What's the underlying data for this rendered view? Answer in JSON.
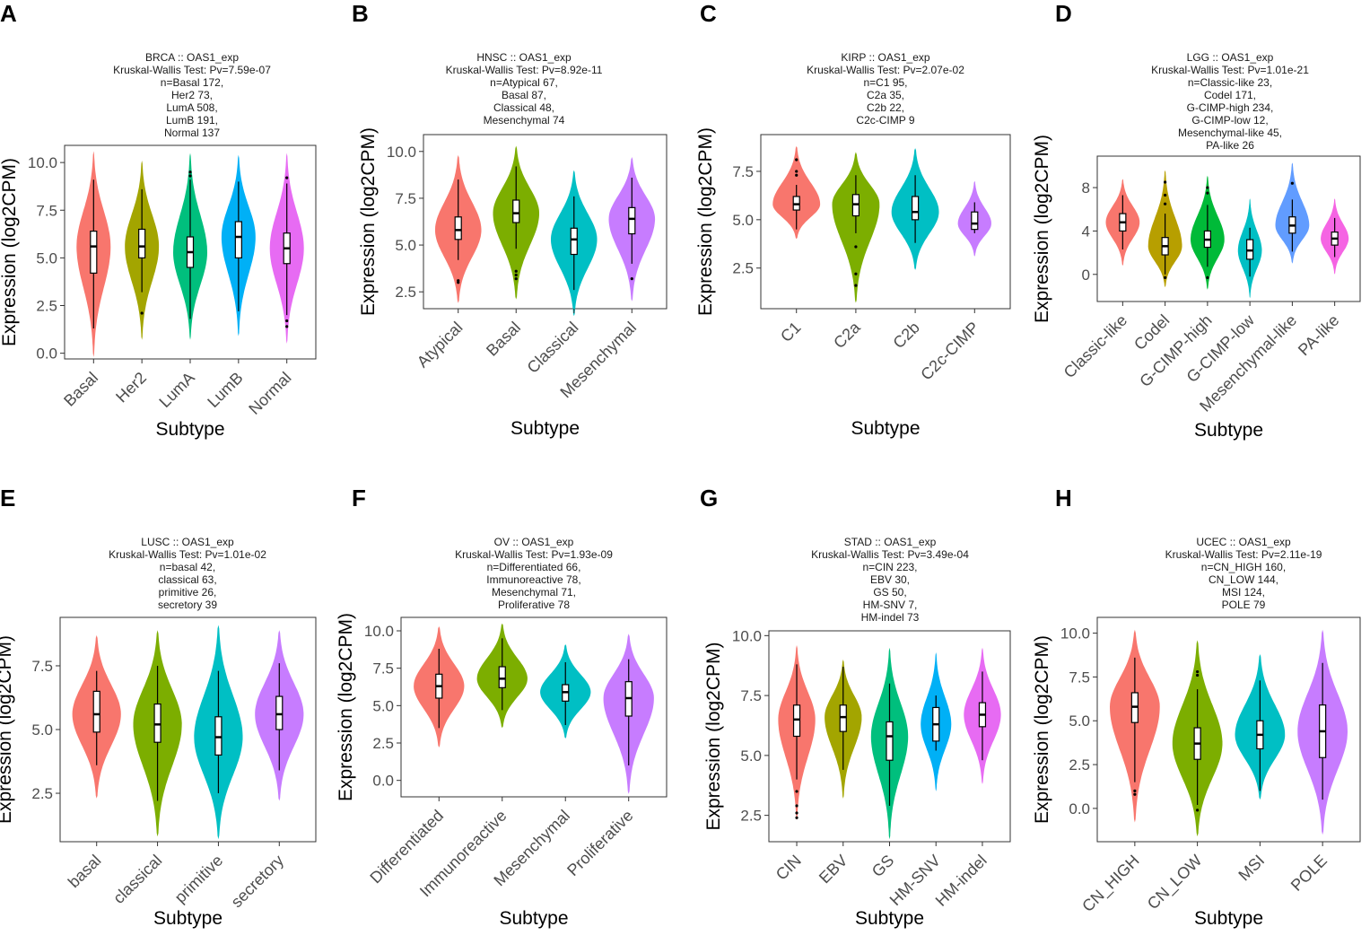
{
  "figure": {
    "xlabel": "Subtype",
    "ylabel": "Expression (log2CPM)"
  },
  "chart_data": [
    {
      "panel": "A",
      "type": "violin",
      "title_lines": [
        "BRCA :: OAS1_exp",
        "Kruskal-Wallis Test: Pv=7.59e-07",
        "n=Basal 172,",
        "Her2 73,",
        "LumA 508,",
        "LumB 191,",
        "Normal 137"
      ],
      "xlabel": "Subtype",
      "ylabel": "Expression (log2CPM)",
      "ylim": [
        -0.3,
        10.9
      ],
      "yticks": [
        0.0,
        2.5,
        5.0,
        7.5,
        10.0
      ],
      "tick_decimals": 1,
      "categories": [
        "Basal",
        "Her2",
        "LumA",
        "LumB",
        "Normal"
      ],
      "colors": [
        "#F8766D",
        "#A3A500",
        "#00BF7D",
        "#00B0F6",
        "#E76BF3"
      ],
      "violins": [
        {
          "min": -0.2,
          "max": 10.6,
          "width": 0.75,
          "q1": 4.2,
          "med": 5.6,
          "q3": 6.4,
          "wlo": 1.3,
          "whi": 9.1,
          "outliers": []
        },
        {
          "min": 0.7,
          "max": 10.1,
          "width": 0.75,
          "q1": 5.0,
          "med": 5.6,
          "q3": 6.5,
          "wlo": 3.2,
          "whi": 8.6,
          "outliers": [
            2.1
          ]
        },
        {
          "min": 0.7,
          "max": 10.5,
          "width": 0.75,
          "q1": 4.5,
          "med": 5.3,
          "q3": 6.1,
          "wlo": 1.8,
          "whi": 9.1,
          "outliers": [
            9.3,
            9.5
          ]
        },
        {
          "min": 0.9,
          "max": 10.4,
          "width": 0.75,
          "q1": 5.0,
          "med": 6.1,
          "q3": 6.9,
          "wlo": 2.2,
          "whi": 9.0,
          "outliers": []
        },
        {
          "min": 0.5,
          "max": 10.5,
          "width": 0.75,
          "q1": 4.7,
          "med": 5.5,
          "q3": 6.3,
          "wlo": 2.0,
          "whi": 8.9,
          "outliers": [
            9.2,
            1.7,
            1.4
          ]
        }
      ]
    },
    {
      "panel": "B",
      "type": "violin",
      "title_lines": [
        "HNSC :: OAS1_exp",
        "Kruskal-Wallis Test: Pv=8.92e-11",
        "n=Atypical 67,",
        "Basal 87,",
        "Classical 48,",
        "Mesenchymal 74"
      ],
      "xlabel": "Subtype",
      "ylabel": "Expression (log2CPM)",
      "ylim": [
        1.6,
        10.9
      ],
      "yticks": [
        2.5,
        5.0,
        7.5,
        10.0
      ],
      "tick_decimals": 1,
      "categories": [
        "Atypical",
        "Basal",
        "Classical",
        "Mesenchymal"
      ],
      "colors": [
        "#F8766D",
        "#7CAE00",
        "#00BFC4",
        "#C77CFF"
      ],
      "violins": [
        {
          "min": 1.9,
          "max": 9.8,
          "width": 0.85,
          "q1": 5.3,
          "med": 5.8,
          "q3": 6.5,
          "wlo": 4.2,
          "whi": 8.5,
          "outliers": [
            3.1,
            3.0
          ]
        },
        {
          "min": 2.1,
          "max": 10.3,
          "width": 0.85,
          "q1": 6.2,
          "med": 6.7,
          "q3": 7.4,
          "wlo": 4.8,
          "whi": 9.2,
          "outliers": [
            3.6,
            3.4,
            3.2
          ]
        },
        {
          "min": 1.2,
          "max": 9.0,
          "width": 0.85,
          "q1": 4.5,
          "med": 5.3,
          "q3": 5.9,
          "wlo": 2.6,
          "whi": 7.6,
          "outliers": []
        },
        {
          "min": 2.0,
          "max": 9.7,
          "width": 0.85,
          "q1": 5.6,
          "med": 6.4,
          "q3": 7.0,
          "wlo": 4.0,
          "whi": 8.6,
          "outliers": [
            3.2
          ]
        }
      ]
    },
    {
      "panel": "C",
      "type": "violin",
      "title_lines": [
        "KIRP :: OAS1_exp",
        "Kruskal-Wallis Test: Pv=2.07e-02",
        "n=C1 95,",
        "C2a 35,",
        "C2b 22,",
        "C2c-CIMP 9"
      ],
      "xlabel": "Subtype",
      "ylabel": "Expression (log2CPM)",
      "ylim": [
        0.4,
        9.4
      ],
      "yticks": [
        2.5,
        5.0,
        7.5
      ],
      "tick_decimals": 1,
      "categories": [
        "C1",
        "C2a",
        "C2b",
        "C2c-CIMP"
      ],
      "colors": [
        "#F8766D",
        "#7CAE00",
        "#00BFC4",
        "#C77CFF"
      ],
      "violins": [
        {
          "min": 4.0,
          "max": 8.8,
          "width": 0.85,
          "q1": 5.5,
          "med": 5.8,
          "q3": 6.2,
          "wlo": 4.5,
          "whi": 6.8,
          "outliers": [
            8.1,
            7.5,
            7.3
          ]
        },
        {
          "min": 0.7,
          "max": 8.5,
          "width": 0.85,
          "q1": 5.2,
          "med": 5.8,
          "q3": 6.3,
          "wlo": 4.3,
          "whi": 7.3,
          "outliers": [
            3.6,
            2.2,
            1.6
          ]
        },
        {
          "min": 2.4,
          "max": 8.7,
          "width": 0.85,
          "q1": 5.0,
          "med": 5.4,
          "q3": 6.2,
          "wlo": 3.8,
          "whi": 7.3,
          "outliers": []
        },
        {
          "min": 3.1,
          "max": 7.0,
          "width": 0.6,
          "q1": 4.5,
          "med": 4.8,
          "q3": 5.4,
          "wlo": 4.3,
          "whi": 5.9,
          "outliers": []
        }
      ]
    },
    {
      "panel": "D",
      "type": "violin",
      "title_lines": [
        "LGG :: OAS1_exp",
        "Kruskal-Wallis Test: Pv=1.01e-21",
        "n=Classic-like 23,",
        "Codel 171,",
        "G-CIMP-high 234,",
        "G-CIMP-low 12,",
        "Mesenchymal-like 45,",
        "PA-like 26"
      ],
      "xlabel": "Subtype",
      "ylabel": "Expression (log2CPM)",
      "ylim": [
        -2.5,
        10.9
      ],
      "yticks": [
        0,
        4,
        8
      ],
      "tick_decimals": 0,
      "categories": [
        "Classic-like",
        "Codel",
        "G-CIMP-high",
        "G-CIMP-low",
        "Mesenchymal-like",
        "PA-like"
      ],
      "colors": [
        "#F8766D",
        "#B79F00",
        "#00BA38",
        "#00BFC4",
        "#619CFF",
        "#F564E3"
      ],
      "violins": [
        {
          "min": 0.8,
          "max": 8.8,
          "width": 0.85,
          "q1": 4.0,
          "med": 4.8,
          "q3": 5.6,
          "wlo": 2.3,
          "whi": 7.3,
          "outliers": []
        },
        {
          "min": -1.2,
          "max": 9.6,
          "width": 0.85,
          "q1": 1.8,
          "med": 2.6,
          "q3": 3.4,
          "wlo": 0.0,
          "whi": 5.6,
          "outliers": [
            8.5,
            7.3,
            6.5,
            -0.3
          ]
        },
        {
          "min": -1.4,
          "max": 9.1,
          "width": 0.85,
          "q1": 2.5,
          "med": 3.2,
          "q3": 4.0,
          "wlo": 0.7,
          "whi": 6.4,
          "outliers": [
            8.0,
            7.5,
            -0.3
          ]
        },
        {
          "min": -2.2,
          "max": 7.0,
          "width": 0.6,
          "q1": 1.4,
          "med": 2.2,
          "q3": 3.2,
          "wlo": -0.2,
          "whi": 4.3,
          "outliers": []
        },
        {
          "min": 1.0,
          "max": 10.3,
          "width": 0.85,
          "q1": 3.8,
          "med": 4.5,
          "q3": 5.3,
          "wlo": 2.1,
          "whi": 6.9,
          "outliers": [
            8.4
          ]
        },
        {
          "min": 0.0,
          "max": 7.0,
          "width": 0.7,
          "q1": 2.7,
          "med": 3.3,
          "q3": 3.9,
          "wlo": 1.6,
          "whi": 5.2,
          "outliers": []
        }
      ]
    },
    {
      "panel": "E",
      "type": "violin",
      "title_lines": [
        "LUSC :: OAS1_exp",
        "Kruskal-Wallis Test: Pv=1.01e-02",
        "n=basal 42,",
        "classical 63,",
        "primitive 26,",
        "secretory 39"
      ],
      "xlabel": "Subtype",
      "ylabel": "Expression (log2CPM)",
      "ylim": [
        0.6,
        9.4
      ],
      "yticks": [
        2.5,
        5.0,
        7.5
      ],
      "tick_decimals": 1,
      "categories": [
        "basal",
        "classical",
        "primitive",
        "secretory"
      ],
      "colors": [
        "#F8766D",
        "#7CAE00",
        "#00BFC4",
        "#C77CFF"
      ],
      "violins": [
        {
          "min": 2.3,
          "max": 8.7,
          "width": 0.85,
          "q1": 4.9,
          "med": 5.6,
          "q3": 6.5,
          "wlo": 3.6,
          "whi": 7.3,
          "outliers": []
        },
        {
          "min": 0.8,
          "max": 8.9,
          "width": 0.85,
          "q1": 4.5,
          "med": 5.2,
          "q3": 6.0,
          "wlo": 2.2,
          "whi": 7.5,
          "outliers": []
        },
        {
          "min": 0.7,
          "max": 9.1,
          "width": 0.85,
          "q1": 4.0,
          "med": 4.7,
          "q3": 5.5,
          "wlo": 2.5,
          "whi": 7.3,
          "outliers": []
        },
        {
          "min": 2.2,
          "max": 8.9,
          "width": 0.85,
          "q1": 5.0,
          "med": 5.6,
          "q3": 6.3,
          "wlo": 3.4,
          "whi": 7.6,
          "outliers": []
        }
      ]
    },
    {
      "panel": "F",
      "type": "violin",
      "title_lines": [
        "OV :: OAS1_exp",
        "Kruskal-Wallis Test: Pv=1.93e-09",
        "n=Differentiated 66,",
        "Immunoreactive 78,",
        "Mesenchymal 71,",
        "Proliferative 78"
      ],
      "xlabel": "Subtype",
      "ylabel": "Expression (log2CPM)",
      "ylim": [
        -1.1,
        10.9
      ],
      "yticks": [
        0.0,
        2.5,
        5.0,
        7.5,
        10.0
      ],
      "tick_decimals": 1,
      "categories": [
        "Differentiated",
        "Immunoreactive",
        "Mesenchymal",
        "Proliferative"
      ],
      "colors": [
        "#F8766D",
        "#7CAE00",
        "#00BFC4",
        "#C77CFF"
      ],
      "violins": [
        {
          "min": 2.2,
          "max": 10.3,
          "width": 0.85,
          "q1": 5.5,
          "med": 6.3,
          "q3": 7.1,
          "wlo": 3.5,
          "whi": 8.8,
          "outliers": []
        },
        {
          "min": 3.5,
          "max": 10.5,
          "width": 0.85,
          "q1": 6.2,
          "med": 6.8,
          "q3": 7.6,
          "wlo": 4.7,
          "whi": 9.5,
          "outliers": []
        },
        {
          "min": 2.8,
          "max": 9.1,
          "width": 0.85,
          "q1": 5.3,
          "med": 5.9,
          "q3": 6.4,
          "wlo": 3.7,
          "whi": 7.9,
          "outliers": []
        },
        {
          "min": -0.9,
          "max": 9.8,
          "width": 0.85,
          "q1": 4.3,
          "med": 5.5,
          "q3": 6.6,
          "wlo": 1.0,
          "whi": 8.1,
          "outliers": []
        }
      ]
    },
    {
      "panel": "G",
      "type": "violin",
      "title_lines": [
        "STAD :: OAS1_exp",
        "Kruskal-Wallis Test: Pv=3.49e-04",
        "n=CIN 223,",
        "EBV 30,",
        "GS 50,",
        "HM-SNV 7,",
        "HM-indel 73"
      ],
      "xlabel": "Subtype",
      "ylabel": "Expression (log2CPM)",
      "ylim": [
        1.4,
        10.2
      ],
      "yticks": [
        2.5,
        5.0,
        7.5,
        10.0
      ],
      "tick_decimals": 1,
      "categories": [
        "CIN",
        "EBV",
        "GS",
        "HM-SNV",
        "HM-indel"
      ],
      "colors": [
        "#F8766D",
        "#A3A500",
        "#00BF7D",
        "#00B0F6",
        "#E76BF3"
      ],
      "violins": [
        {
          "min": 2.3,
          "max": 9.6,
          "width": 0.85,
          "q1": 5.8,
          "med": 6.5,
          "q3": 7.1,
          "wlo": 4.0,
          "whi": 8.8,
          "outliers": [
            3.5,
            2.9,
            2.6,
            2.4
          ]
        },
        {
          "min": 3.2,
          "max": 9.0,
          "width": 0.85,
          "q1": 6.0,
          "med": 6.6,
          "q3": 7.1,
          "wlo": 4.4,
          "whi": 8.7,
          "outliers": []
        },
        {
          "min": 1.5,
          "max": 9.5,
          "width": 0.85,
          "q1": 4.8,
          "med": 5.8,
          "q3": 6.4,
          "wlo": 2.9,
          "whi": 8.0,
          "outliers": []
        },
        {
          "min": 3.5,
          "max": 9.3,
          "width": 0.7,
          "q1": 5.6,
          "med": 6.3,
          "q3": 7.0,
          "wlo": 5.2,
          "whi": 7.5,
          "outliers": []
        },
        {
          "min": 3.8,
          "max": 9.5,
          "width": 0.85,
          "q1": 6.2,
          "med": 6.7,
          "q3": 7.2,
          "wlo": 4.8,
          "whi": 8.5,
          "outliers": []
        }
      ]
    },
    {
      "panel": "H",
      "type": "violin",
      "title_lines": [
        "UCEC :: OAS1_exp",
        "Kruskal-Wallis Test: Pv=2.11e-19",
        "n=CN_HIGH 160,",
        "CN_LOW 144,",
        "MSI 124,",
        "POLE 79"
      ],
      "xlabel": "Subtype",
      "ylabel": "Expression (log2CPM)",
      "ylim": [
        -1.9,
        10.9
      ],
      "yticks": [
        0.0,
        2.5,
        5.0,
        7.5,
        10.0
      ],
      "tick_decimals": 1,
      "categories": [
        "CN_HIGH",
        "CN_LOW",
        "MSI",
        "POLE"
      ],
      "colors": [
        "#F8766D",
        "#7CAE00",
        "#00BFC4",
        "#C77CFF"
      ],
      "violins": [
        {
          "min": -0.8,
          "max": 10.2,
          "width": 0.85,
          "q1": 4.9,
          "med": 5.8,
          "q3": 6.6,
          "wlo": 1.5,
          "whi": 8.6,
          "outliers": [
            1.0,
            0.8
          ]
        },
        {
          "min": -1.6,
          "max": 9.6,
          "width": 0.85,
          "q1": 2.8,
          "med": 3.7,
          "q3": 4.6,
          "wlo": 0.2,
          "whi": 6.8,
          "outliers": [
            7.8,
            7.6,
            -0.1
          ]
        },
        {
          "min": 0.5,
          "max": 8.8,
          "width": 0.85,
          "q1": 3.4,
          "med": 4.2,
          "q3": 5.0,
          "wlo": 1.0,
          "whi": 7.3,
          "outliers": []
        },
        {
          "min": -1.5,
          "max": 10.2,
          "width": 0.85,
          "q1": 2.9,
          "med": 4.4,
          "q3": 5.9,
          "wlo": 0.5,
          "whi": 8.3,
          "outliers": []
        }
      ]
    }
  ]
}
